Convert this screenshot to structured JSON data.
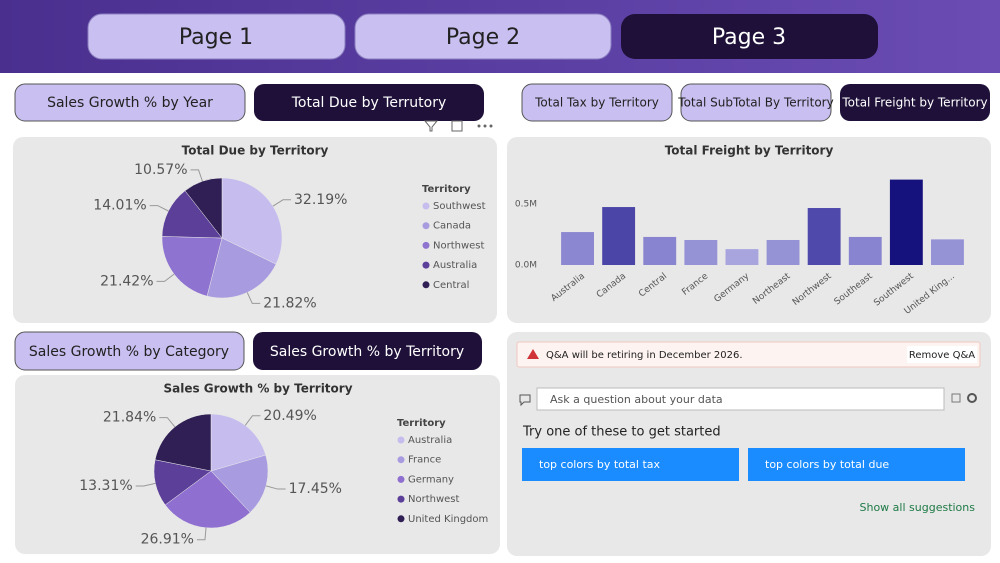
{
  "nav": {
    "pages": [
      "Page 1",
      "Page 2",
      "Page 3"
    ]
  },
  "buttons": {
    "top_left": [
      "Sales Growth % by Year",
      "Total Due by Terrutory"
    ],
    "top_right": [
      "Total Tax by Territory",
      "Total SubTotal By Territory",
      "Total Freight by Territory"
    ],
    "bottom_left": [
      "Sales Growth % by Category",
      "Sales Growth % by Territory"
    ]
  },
  "chart_data": [
    {
      "type": "pie",
      "title": "Total Due by Territory",
      "legend_title": "Territory",
      "legend": "right",
      "categories": [
        "Southwest",
        "Canada",
        "Northwest",
        "Australia",
        "Central"
      ],
      "values": [
        32.19,
        21.82,
        21.42,
        14.01,
        10.57
      ],
      "value_labels": [
        "32.19%",
        "21.82%",
        "21.42%",
        "14.01%",
        "10.57%"
      ],
      "colors": [
        "#c6bdee",
        "#a99be0",
        "#8f73d0",
        "#5c3f99",
        "#2f1f55"
      ]
    },
    {
      "type": "bar",
      "title": "Total Freight by Territory",
      "categories": [
        "Australia",
        "Canada",
        "Central",
        "France",
        "Germany",
        "Northeast",
        "Northwest",
        "Southeast",
        "Southwest",
        "United King..."
      ],
      "values": [
        270000,
        475000,
        230000,
        205000,
        130000,
        205000,
        467000,
        230000,
        700000,
        210000
      ],
      "colors": [
        "#8b87d0",
        "#4b45a8",
        "#8884cf",
        "#9592d6",
        "#a7a4de",
        "#9592d6",
        "#4f49ab",
        "#8884cf",
        "#15127e",
        "#9592d6"
      ],
      "ylim": [
        0,
        750000
      ],
      "yticks": [
        {
          "value": 0,
          "label": "0.0M"
        },
        {
          "value": 500000,
          "label": "0.5M"
        }
      ],
      "grid": false
    },
    {
      "type": "pie",
      "title": "Sales Growth % by Territory",
      "legend_title": "Territory",
      "legend": "right",
      "categories": [
        "Australia",
        "France",
        "Germany",
        "Northwest",
        "United Kingdom"
      ],
      "values": [
        20.49,
        17.45,
        26.91,
        13.31,
        21.84
      ],
      "value_labels": [
        "20.49%",
        "17.45%",
        "26.91%",
        "13.31%",
        "21.84%"
      ],
      "colors": [
        "#c6bdee",
        "#a99be0",
        "#8f6fd0",
        "#5c3f99",
        "#2f1f55"
      ]
    }
  ],
  "qa": {
    "notice": "Q&A will be retiring in December 2026.",
    "remove": "Remove Q&A",
    "placeholder": "Ask a question about your data",
    "prompt": "Try one of these to get started",
    "suggestions": [
      "top colors by total tax",
      "top colors by total due"
    ],
    "show_all": "Show all suggestions"
  }
}
